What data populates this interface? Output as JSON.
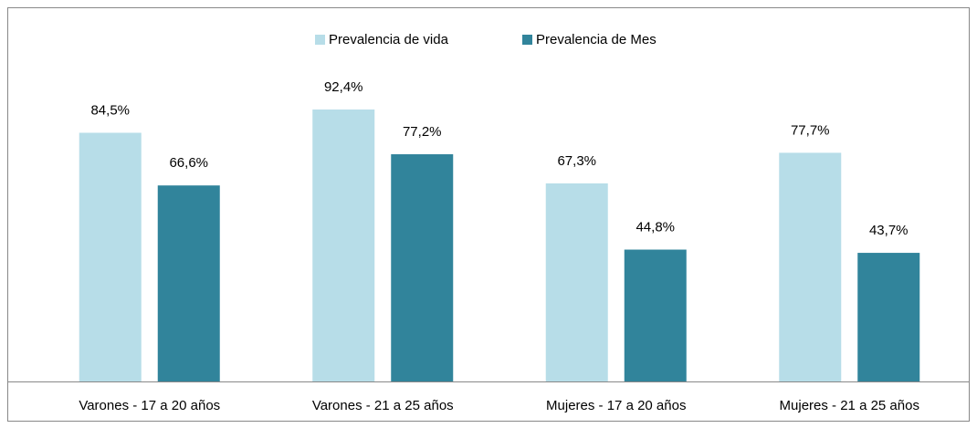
{
  "chart_data": {
    "type": "bar",
    "categories": [
      "Varones -  17 a 20 años",
      "Varones - 21 a 25 años",
      "Mujeres - 17 a 20 años",
      "Mujeres - 21 a 25 años"
    ],
    "series": [
      {
        "name": "Prevalencia de vida",
        "color": "#b7dde8",
        "values": [
          84.5,
          92.4,
          67.3,
          77.7
        ],
        "value_labels": [
          "84,5%",
          "92,4%",
          "67,3%",
          "77,7%"
        ]
      },
      {
        "name": "Prevalencia de Mes",
        "color": "#31849b",
        "values": [
          66.6,
          77.2,
          44.8,
          43.7
        ],
        "value_labels": [
          "66,6%",
          "77,2%",
          "44,8%",
          "43,7%"
        ]
      }
    ],
    "legend": "top"
  }
}
